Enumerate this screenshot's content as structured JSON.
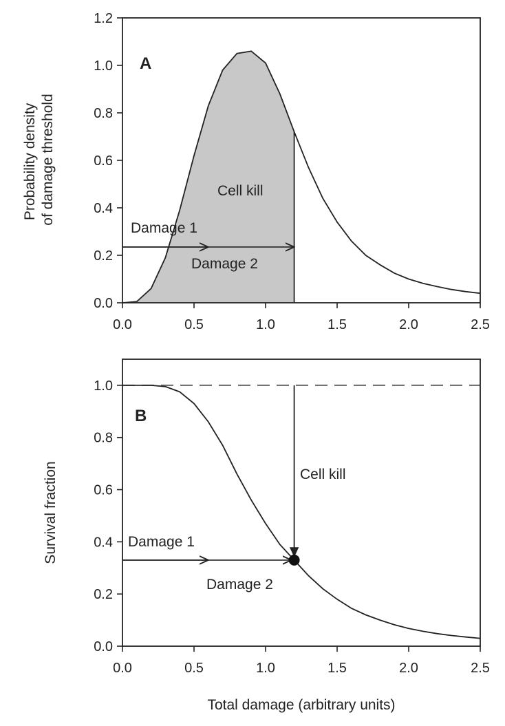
{
  "chart_data": [
    {
      "type": "area",
      "panel_label": "A",
      "title": "",
      "xlabel": "",
      "ylabel_lines": [
        "Probability density",
        "of damage threshold"
      ],
      "xlim": [
        0,
        2.5
      ],
      "ylim": [
        0,
        1.2
      ],
      "x_ticks": [
        "0.0",
        "0.5",
        "1.0",
        "1.5",
        "2.0",
        "2.5"
      ],
      "y_ticks": [
        "0.0",
        "0.2",
        "0.4",
        "0.6",
        "0.8",
        "1.0",
        "1.2"
      ],
      "x_tick_values": [
        0,
        0.5,
        1.0,
        1.5,
        2.0,
        2.5
      ],
      "y_tick_values": [
        0,
        0.2,
        0.4,
        0.6,
        0.8,
        1.0,
        1.2
      ],
      "grid": false,
      "series": [
        {
          "x": [
            0.0,
            0.1,
            0.2,
            0.3,
            0.4,
            0.5,
            0.6,
            0.7,
            0.8,
            0.9,
            1.0,
            1.1,
            1.2,
            1.3,
            1.4,
            1.5,
            1.6,
            1.7,
            1.8,
            1.9,
            2.0,
            2.1,
            2.2,
            2.3,
            2.4,
            2.5
          ],
          "y": [
            0.0,
            0.005,
            0.06,
            0.19,
            0.39,
            0.62,
            0.83,
            0.98,
            1.05,
            1.06,
            1.01,
            0.88,
            0.72,
            0.57,
            0.44,
            0.34,
            0.26,
            0.2,
            0.16,
            0.125,
            0.1,
            0.082,
            0.068,
            0.056,
            0.047,
            0.04
          ]
        }
      ],
      "shaded_region": {
        "from": 0.0,
        "to": 1.2,
        "color": "#c8c8c8",
        "label": "Cell kill"
      },
      "arrows": [
        {
          "label": "Damage 1",
          "from": [
            0.0,
            0.235
          ],
          "to": [
            0.6,
            0.235
          ]
        },
        {
          "label": "Damage 2",
          "from": [
            0.0,
            0.235
          ],
          "to": [
            1.2,
            0.235
          ]
        }
      ],
      "annotations": [
        "Cell kill",
        "Damage 1",
        "Damage 2"
      ]
    },
    {
      "type": "line",
      "panel_label": "B",
      "title": "",
      "xlabel": "Total damage (arbitrary units)",
      "ylabel": "Survival fraction",
      "xlim": [
        0,
        2.5
      ],
      "ylim": [
        0,
        1.1
      ],
      "x_ticks": [
        "0.0",
        "0.5",
        "1.0",
        "1.5",
        "2.0",
        "2.5"
      ],
      "y_ticks": [
        "0.0",
        "0.2",
        "0.4",
        "0.6",
        "0.8",
        "1.0"
      ],
      "x_tick_values": [
        0,
        0.5,
        1.0,
        1.5,
        2.0,
        2.5
      ],
      "y_tick_values": [
        0,
        0.2,
        0.4,
        0.6,
        0.8,
        1.0
      ],
      "grid": false,
      "series": [
        {
          "x": [
            0.0,
            0.1,
            0.2,
            0.3,
            0.4,
            0.5,
            0.6,
            0.7,
            0.8,
            0.9,
            1.0,
            1.1,
            1.2,
            1.3,
            1.4,
            1.5,
            1.6,
            1.7,
            1.8,
            1.9,
            2.0,
            2.1,
            2.2,
            2.3,
            2.4,
            2.5
          ],
          "y": [
            1.0,
            1.0,
            1.0,
            0.995,
            0.975,
            0.93,
            0.86,
            0.77,
            0.66,
            0.56,
            0.47,
            0.39,
            0.33,
            0.27,
            0.22,
            0.18,
            0.145,
            0.12,
            0.1,
            0.082,
            0.068,
            0.057,
            0.048,
            0.041,
            0.035,
            0.03
          ]
        }
      ],
      "reference_line": {
        "y": 1.0,
        "style": "dashed"
      },
      "marker_point": {
        "x": 1.2,
        "y": 0.33
      },
      "vertical_arrow": {
        "label": "Cell kill",
        "x": 1.2,
        "from": 1.0,
        "to": 0.33
      },
      "arrows": [
        {
          "label": "Damage 1",
          "from": [
            0.0,
            0.33
          ],
          "to": [
            0.6,
            0.33
          ]
        },
        {
          "label": "Damage 2",
          "from": [
            0.0,
            0.33
          ],
          "to": [
            1.2,
            0.33
          ]
        }
      ],
      "annotations": [
        "Cell kill",
        "Damage 1",
        "Damage 2"
      ]
    }
  ]
}
